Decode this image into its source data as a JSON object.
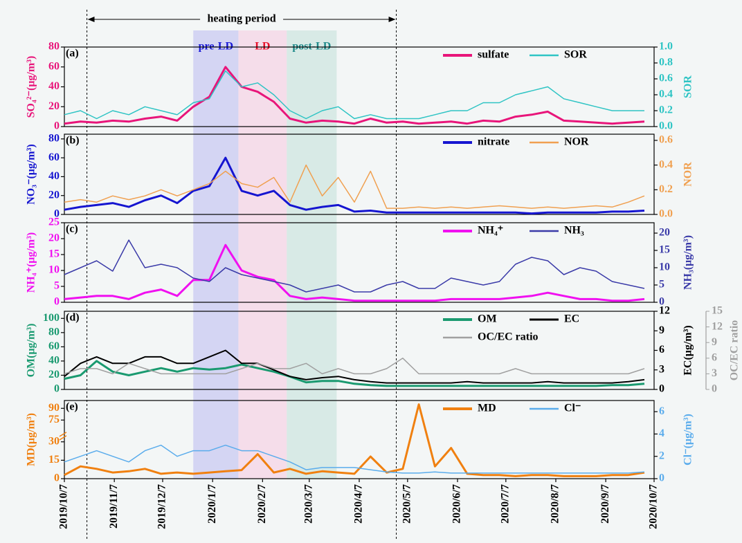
{
  "chart_data": {
    "type": "line",
    "xlim": [
      "2019/10/7",
      "2020/10/7"
    ],
    "xticks": [
      "2019/10/7",
      "2019/11/7",
      "2019/12/7",
      "2020/1/7",
      "2020/2/7",
      "2020/3/7",
      "2020/4/7",
      "2020/5/7",
      "2020/6/7",
      "2020/7/7",
      "2020/8/7",
      "2020/9/7",
      "2020/10/7"
    ],
    "x": [
      "2019/10/7",
      "2019/10/17",
      "2019/10/27",
      "2019/11/6",
      "2019/11/16",
      "2019/11/26",
      "2019/12/6",
      "2019/12/16",
      "2019/12/26",
      "2020/1/5",
      "2020/1/15",
      "2020/1/25",
      "2020/2/4",
      "2020/2/14",
      "2020/2/24",
      "2020/3/5",
      "2020/3/15",
      "2020/3/25",
      "2020/4/4",
      "2020/4/14",
      "2020/4/24",
      "2020/5/4",
      "2020/5/14",
      "2020/5/24",
      "2020/6/3",
      "2020/6/13",
      "2020/6/23",
      "2020/7/3",
      "2020/7/13",
      "2020/7/23",
      "2020/8/2",
      "2020/8/12",
      "2020/8/22",
      "2020/9/1",
      "2020/9/11",
      "2020/9/21",
      "2020/10/1"
    ],
    "heating_period": {
      "label": "heating period",
      "x": [
        "2019/10/21",
        "2020/4/30"
      ]
    },
    "bands": [
      {
        "label": "pre-LD",
        "x": [
          "2019/12/26",
          "2020/1/23"
        ],
        "color": "#c9c9f2",
        "text_color": "#1a1ad8"
      },
      {
        "label": "LD",
        "x": [
          "2020/1/23",
          "2020/2/22"
        ],
        "color": "#f6d4e6",
        "text_color": "#e8102a"
      },
      {
        "label": "post-LD",
        "x": [
          "2020/2/22",
          "2020/3/24"
        ],
        "color": "#cfe6e0",
        "text_color": "#1f8a8a"
      }
    ],
    "panels": [
      {
        "label": "(a)",
        "ylabel": "SO₄²⁻(μg/m³)",
        "y2label": "SOR",
        "ylim": [
          0,
          80
        ],
        "yticks": [
          0,
          20,
          40,
          60,
          80
        ],
        "y2lim": [
          0,
          1
        ],
        "y2ticks": [
          {
            "value": 0,
            "label": "0.0"
          },
          {
            "value": 0.2,
            "label": "0.2"
          },
          {
            "value": 0.4,
            "label": "0.4"
          },
          {
            "value": 0.6,
            "label": "0.6"
          },
          {
            "value": 0.8,
            "label": "0.8"
          },
          {
            "value": 1,
            "label": "1.0"
          }
        ],
        "series": [
          {
            "name": "sulfate",
            "color": "#e8157a",
            "width": 3,
            "values": [
              3,
              5,
              4,
              6,
              5,
              8,
              10,
              6,
              20,
              30,
              60,
              40,
              35,
              25,
              8,
              4,
              6,
              5,
              3,
              8,
              4,
              5,
              3,
              4,
              5,
              3,
              6,
              5,
              10,
              12,
              15,
              6,
              5,
              4,
              3,
              4,
              5
            ]
          },
          {
            "name": "SOR",
            "color": "#2ec4c4",
            "width": 1.5,
            "axis": "y2",
            "values": [
              0.15,
              0.2,
              0.1,
              0.2,
              0.15,
              0.25,
              0.2,
              0.15,
              0.3,
              0.35,
              0.7,
              0.5,
              0.55,
              0.4,
              0.2,
              0.1,
              0.2,
              0.25,
              0.1,
              0.15,
              0.1,
              0.1,
              0.1,
              0.15,
              0.2,
              0.2,
              0.3,
              0.3,
              0.4,
              0.45,
              0.5,
              0.35,
              0.3,
              0.25,
              0.2,
              0.2,
              0.2
            ]
          }
        ]
      },
      {
        "label": "(b)",
        "ylabel": "NO₃⁻(μg/m³)",
        "y2label": "NOR",
        "ylim": [
          0,
          85
        ],
        "yticks": [
          0,
          20,
          40,
          60,
          80
        ],
        "y2lim": [
          0,
          0.65
        ],
        "y2ticks": [
          {
            "value": 0,
            "label": "0.0"
          },
          {
            "value": 0.2,
            "label": "0.2"
          },
          {
            "value": 0.4,
            "label": "0.4"
          },
          {
            "value": 0.6,
            "label": "0.6"
          }
        ],
        "series": [
          {
            "name": "nitrate",
            "color": "#1515d0",
            "width": 3,
            "values": [
              5,
              8,
              10,
              12,
              8,
              15,
              20,
              12,
              25,
              30,
              60,
              25,
              20,
              25,
              10,
              5,
              8,
              10,
              3,
              4,
              2,
              2,
              2,
              2,
              2,
              2,
              2,
              2,
              2,
              1,
              2,
              2,
              2,
              2,
              3,
              3,
              4
            ]
          },
          {
            "name": "NOR",
            "color": "#f0a050",
            "width": 1.5,
            "axis": "y2",
            "values": [
              0.1,
              0.12,
              0.1,
              0.15,
              0.12,
              0.15,
              0.2,
              0.15,
              0.2,
              0.25,
              0.35,
              0.25,
              0.22,
              0.3,
              0.1,
              0.4,
              0.15,
              0.3,
              0.1,
              0.35,
              0.05,
              0.05,
              0.06,
              0.05,
              0.06,
              0.05,
              0.06,
              0.07,
              0.06,
              0.05,
              0.06,
              0.05,
              0.06,
              0.07,
              0.06,
              0.1,
              0.15
            ]
          }
        ]
      },
      {
        "label": "(c)",
        "ylabel": "NH₄⁺(μg/m³)",
        "y2label": "NH₃(μg/m³)",
        "ylim": [
          0,
          25
        ],
        "yticks": [
          0,
          5,
          10,
          15,
          20,
          25
        ],
        "y2lim": [
          0,
          23
        ],
        "y2ticks": [
          0,
          5,
          10,
          15,
          20
        ],
        "series": [
          {
            "name": "NH₄⁺",
            "color": "#f010f0",
            "width": 3,
            "values": [
              1,
              1.5,
              2,
              2,
              1,
              3,
              4,
              2,
              7,
              7,
              18,
              10,
              8,
              7,
              2,
              1,
              1.5,
              1,
              0.5,
              0.5,
              0.5,
              0.5,
              0.5,
              0.5,
              1,
              1,
              1,
              1,
              1.5,
              2,
              3,
              2,
              1,
              1,
              0.5,
              0.5,
              1
            ]
          },
          {
            "name": "NH₃",
            "color": "#3a3aa8",
            "width": 1.5,
            "axis": "y2",
            "values": [
              8,
              10,
              12,
              9,
              18,
              10,
              11,
              10,
              7,
              6,
              10,
              8,
              7,
              6,
              5,
              3,
              4,
              5,
              3,
              3,
              5,
              6,
              4,
              4,
              7,
              6,
              5,
              6,
              11,
              13,
              12,
              8,
              10,
              9,
              6,
              5,
              4
            ]
          }
        ]
      },
      {
        "label": "(d)",
        "ylabel": "OM(μg/m³)",
        "y2label": "EC(μg/m³)",
        "y3label": "OC/EC ratio",
        "ylim": [
          0,
          110
        ],
        "yticks": [
          0,
          20,
          40,
          60,
          80,
          100
        ],
        "y2lim": [
          0,
          12
        ],
        "y2ticks": [
          0,
          3,
          6,
          9,
          12
        ],
        "y3lim": [
          0,
          15
        ],
        "y3ticks": [
          0,
          3,
          6,
          9,
          12,
          15
        ],
        "series": [
          {
            "name": "OM",
            "color": "#1a9a70",
            "width": 3,
            "values": [
              15,
              20,
              40,
              25,
              20,
              25,
              30,
              25,
              30,
              28,
              30,
              35,
              30,
              25,
              18,
              10,
              12,
              12,
              8,
              6,
              5,
              5,
              5,
              5,
              5,
              5,
              5,
              5,
              5,
              5,
              5,
              5,
              5,
              5,
              6,
              6,
              8
            ]
          },
          {
            "name": "EC",
            "color": "#000000",
            "width": 2,
            "axis": "y2",
            "values": [
              2,
              4,
              5,
              4,
              4,
              5,
              5,
              4,
              4,
              5,
              6,
              4,
              4,
              3,
              2,
              1.5,
              1.8,
              2,
              1.5,
              1.2,
              1,
              1,
              1,
              1,
              1,
              1.2,
              1,
              1,
              1,
              1,
              1.2,
              1,
              1,
              1,
              1,
              1.2,
              1.5
            ]
          },
          {
            "name": "OC/EC ratio",
            "color": "#a0a0a0",
            "width": 1.5,
            "axis": "y3",
            "values": [
              3,
              4,
              4,
              3,
              5,
              4,
              3,
              3,
              3,
              3,
              3,
              4,
              5,
              4,
              4,
              5,
              3,
              4,
              3,
              3,
              4,
              6,
              3,
              3,
              3,
              3,
              3,
              3,
              4,
              3,
              3,
              3,
              3,
              3,
              3,
              3,
              4
            ]
          }
        ]
      },
      {
        "label": "(e)",
        "ylabel": "MD(μg/m³)",
        "y2label": "Cl⁻(μg/m³)",
        "ylim": [
          0,
          100
        ],
        "ybreak": [
          35,
          62
        ],
        "yticks": [
          0,
          15,
          30,
          75,
          90
        ],
        "y2lim": [
          0,
          7
        ],
        "y2ticks": [
          0,
          2,
          4,
          6
        ],
        "series": [
          {
            "name": "MD",
            "color": "#f08010",
            "width": 3,
            "values": [
              3,
              10,
              8,
              5,
              6,
              8,
              4,
              5,
              4,
              5,
              6,
              7,
              20,
              5,
              8,
              4,
              6,
              5,
              4,
              18,
              5,
              8,
              95,
              10,
              25,
              4,
              3,
              3,
              2,
              3,
              3,
              2,
              2,
              2,
              3,
              3,
              5
            ]
          },
          {
            "name": "Cl⁻",
            "color": "#5aacec",
            "width": 1.5,
            "axis": "y2",
            "values": [
              1.5,
              2,
              2.5,
              2,
              1.5,
              2.5,
              3,
              2,
              2.5,
              2.5,
              3,
              2.5,
              2.5,
              2,
              1.5,
              0.8,
              1,
              1,
              1,
              0.8,
              0.6,
              0.5,
              0.5,
              0.6,
              0.5,
              0.5,
              0.5,
              0.5,
              0.5,
              0.5,
              0.5,
              0.5,
              0.5,
              0.5,
              0.5,
              0.5,
              0.6
            ]
          }
        ]
      }
    ]
  }
}
